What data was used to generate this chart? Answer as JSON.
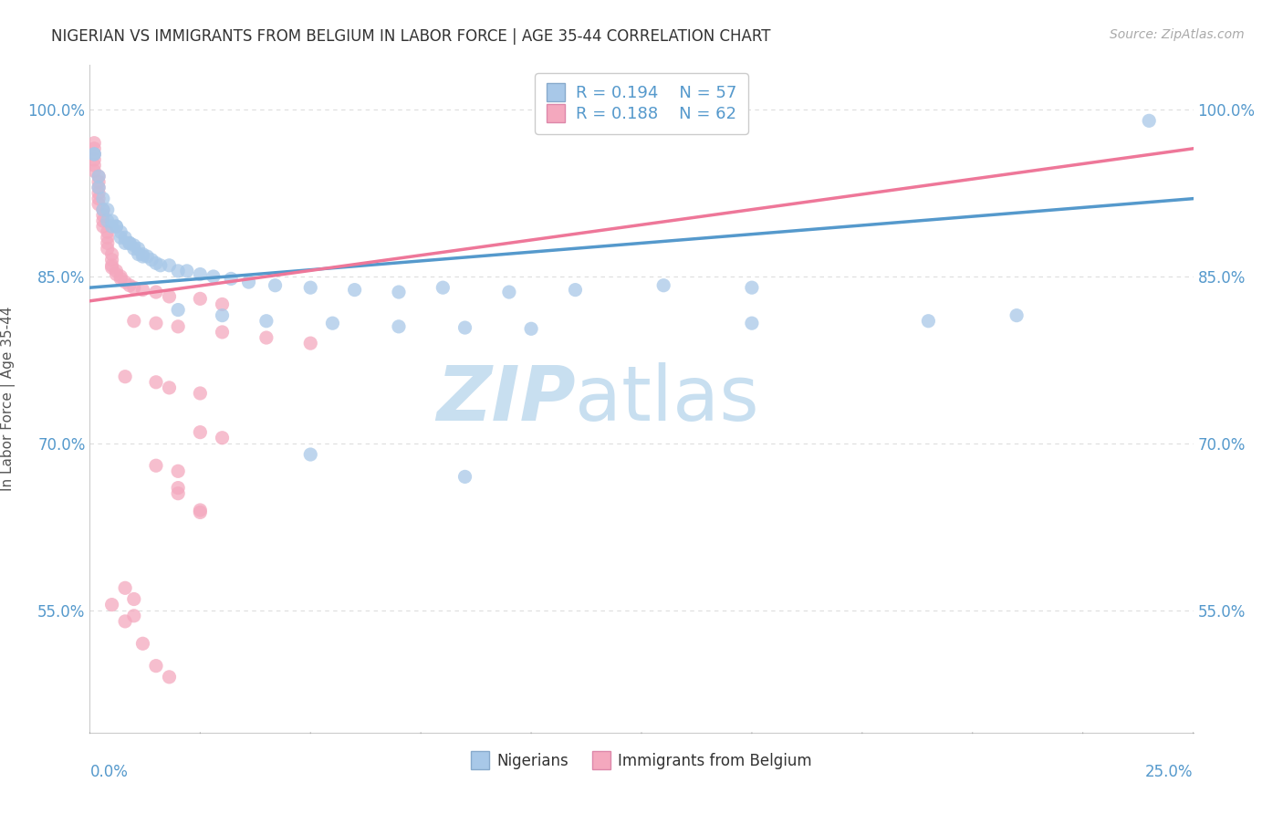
{
  "title": "NIGERIAN VS IMMIGRANTS FROM BELGIUM IN LABOR FORCE | AGE 35-44 CORRELATION CHART",
  "source": "Source: ZipAtlas.com",
  "ylabel": "In Labor Force | Age 35-44",
  "y_ticks": [
    0.55,
    0.7,
    0.85,
    1.0
  ],
  "y_tick_labels": [
    "55.0%",
    "70.0%",
    "85.0%",
    "100.0%"
  ],
  "xlim": [
    0.0,
    0.25
  ],
  "ylim": [
    0.44,
    1.04
  ],
  "blue_R": 0.194,
  "blue_N": 57,
  "pink_R": 0.188,
  "pink_N": 62,
  "blue_label": "Nigerians",
  "pink_label": "Immigrants from Belgium",
  "blue_color": "#a8c8e8",
  "pink_color": "#f4a8be",
  "blue_line_color": "#5599cc",
  "pink_line_color": "#ee7799",
  "blue_line": [
    [
      0.0,
      0.84
    ],
    [
      0.25,
      0.92
    ]
  ],
  "pink_line": [
    [
      0.0,
      0.828
    ],
    [
      0.25,
      0.965
    ]
  ],
  "blue_scatter": [
    [
      0.001,
      0.96
    ],
    [
      0.001,
      0.96
    ],
    [
      0.002,
      0.94
    ],
    [
      0.002,
      0.93
    ],
    [
      0.003,
      0.92
    ],
    [
      0.003,
      0.91
    ],
    [
      0.004,
      0.91
    ],
    [
      0.004,
      0.9
    ],
    [
      0.005,
      0.9
    ],
    [
      0.005,
      0.895
    ],
    [
      0.006,
      0.895
    ],
    [
      0.006,
      0.895
    ],
    [
      0.007,
      0.89
    ],
    [
      0.007,
      0.885
    ],
    [
      0.008,
      0.885
    ],
    [
      0.008,
      0.88
    ],
    [
      0.009,
      0.88
    ],
    [
      0.009,
      0.88
    ],
    [
      0.01,
      0.878
    ],
    [
      0.01,
      0.875
    ],
    [
      0.011,
      0.875
    ],
    [
      0.011,
      0.87
    ],
    [
      0.012,
      0.87
    ],
    [
      0.012,
      0.868
    ],
    [
      0.013,
      0.868
    ],
    [
      0.014,
      0.865
    ],
    [
      0.015,
      0.862
    ],
    [
      0.016,
      0.86
    ],
    [
      0.018,
      0.86
    ],
    [
      0.02,
      0.855
    ],
    [
      0.022,
      0.855
    ],
    [
      0.025,
      0.852
    ],
    [
      0.028,
      0.85
    ],
    [
      0.032,
      0.848
    ],
    [
      0.036,
      0.845
    ],
    [
      0.042,
      0.842
    ],
    [
      0.05,
      0.84
    ],
    [
      0.06,
      0.838
    ],
    [
      0.07,
      0.836
    ],
    [
      0.08,
      0.84
    ],
    [
      0.095,
      0.836
    ],
    [
      0.11,
      0.838
    ],
    [
      0.13,
      0.842
    ],
    [
      0.15,
      0.84
    ],
    [
      0.02,
      0.82
    ],
    [
      0.03,
      0.815
    ],
    [
      0.04,
      0.81
    ],
    [
      0.055,
      0.808
    ],
    [
      0.07,
      0.805
    ],
    [
      0.085,
      0.804
    ],
    [
      0.1,
      0.803
    ],
    [
      0.15,
      0.808
    ],
    [
      0.19,
      0.81
    ],
    [
      0.21,
      0.815
    ],
    [
      0.05,
      0.69
    ],
    [
      0.085,
      0.67
    ],
    [
      0.24,
      0.99
    ]
  ],
  "pink_scatter": [
    [
      0.001,
      0.97
    ],
    [
      0.001,
      0.965
    ],
    [
      0.001,
      0.96
    ],
    [
      0.001,
      0.955
    ],
    [
      0.001,
      0.95
    ],
    [
      0.001,
      0.945
    ],
    [
      0.002,
      0.94
    ],
    [
      0.002,
      0.935
    ],
    [
      0.002,
      0.93
    ],
    [
      0.002,
      0.925
    ],
    [
      0.002,
      0.92
    ],
    [
      0.002,
      0.915
    ],
    [
      0.003,
      0.91
    ],
    [
      0.003,
      0.905
    ],
    [
      0.003,
      0.9
    ],
    [
      0.003,
      0.895
    ],
    [
      0.004,
      0.89
    ],
    [
      0.004,
      0.885
    ],
    [
      0.004,
      0.88
    ],
    [
      0.004,
      0.875
    ],
    [
      0.005,
      0.87
    ],
    [
      0.005,
      0.865
    ],
    [
      0.005,
      0.86
    ],
    [
      0.005,
      0.858
    ],
    [
      0.006,
      0.855
    ],
    [
      0.006,
      0.852
    ],
    [
      0.007,
      0.85
    ],
    [
      0.007,
      0.848
    ],
    [
      0.008,
      0.845
    ],
    [
      0.009,
      0.842
    ],
    [
      0.01,
      0.84
    ],
    [
      0.012,
      0.838
    ],
    [
      0.015,
      0.836
    ],
    [
      0.018,
      0.832
    ],
    [
      0.025,
      0.83
    ],
    [
      0.03,
      0.825
    ],
    [
      0.01,
      0.81
    ],
    [
      0.015,
      0.808
    ],
    [
      0.02,
      0.805
    ],
    [
      0.03,
      0.8
    ],
    [
      0.04,
      0.795
    ],
    [
      0.05,
      0.79
    ],
    [
      0.008,
      0.76
    ],
    [
      0.015,
      0.755
    ],
    [
      0.018,
      0.75
    ],
    [
      0.025,
      0.745
    ],
    [
      0.025,
      0.71
    ],
    [
      0.03,
      0.705
    ],
    [
      0.015,
      0.68
    ],
    [
      0.02,
      0.675
    ],
    [
      0.02,
      0.66
    ],
    [
      0.02,
      0.655
    ],
    [
      0.025,
      0.64
    ],
    [
      0.025,
      0.638
    ],
    [
      0.008,
      0.57
    ],
    [
      0.01,
      0.545
    ],
    [
      0.005,
      0.555
    ],
    [
      0.008,
      0.54
    ],
    [
      0.01,
      0.56
    ],
    [
      0.012,
      0.52
    ],
    [
      0.015,
      0.5
    ],
    [
      0.018,
      0.49
    ]
  ],
  "watermark_zip": "ZIP",
  "watermark_atlas": "atlas",
  "watermark_color": "#c8dff0",
  "background_color": "#ffffff",
  "grid_color": "#dddddd",
  "title_color": "#333333",
  "axis_color": "#5599cc"
}
